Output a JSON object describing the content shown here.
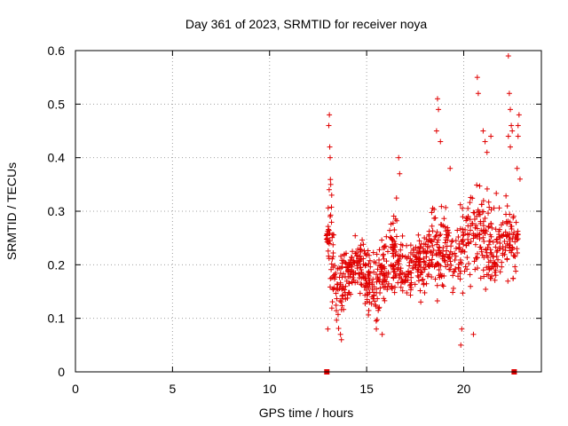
{
  "chart_data": {
    "type": "scatter",
    "title": "Day 361 of 2023, SRMTID for receiver noya",
    "xlabel": "GPS time / hours",
    "ylabel": "SRMTID / TECUs",
    "xlim": [
      0,
      24
    ],
    "ylim": [
      0,
      0.6
    ],
    "x_ticks": [
      0,
      5,
      10,
      15,
      20
    ],
    "x_tick_labels": [
      "0",
      "5",
      "10",
      "15",
      "20"
    ],
    "y_ticks": [
      0,
      0.1,
      0.2,
      0.3,
      0.4,
      0.5,
      0.6
    ],
    "y_tick_labels": [
      "0",
      "0.1",
      "0.2",
      "0.3",
      "0.4",
      "0.5",
      "0.6"
    ],
    "grid": true,
    "marker": "plus",
    "color": "#e00000",
    "series": [
      {
        "name": "SRMTID",
        "x_range": [
          12.9,
          22.8
        ],
        "envelope": [
          {
            "x": 13.0,
            "median": 0.24,
            "low": 0.08,
            "high": 0.48
          },
          {
            "x": 13.5,
            "median": 0.15,
            "low": 0.06,
            "high": 0.27
          },
          {
            "x": 14.0,
            "median": 0.18,
            "low": 0.11,
            "high": 0.26
          },
          {
            "x": 14.5,
            "median": 0.2,
            "low": 0.14,
            "high": 0.28
          },
          {
            "x": 15.0,
            "median": 0.18,
            "low": 0.1,
            "high": 0.28
          },
          {
            "x": 15.5,
            "median": 0.16,
            "low": 0.07,
            "high": 0.24
          },
          {
            "x": 16.0,
            "median": 0.2,
            "low": 0.1,
            "high": 0.28
          },
          {
            "x": 16.5,
            "median": 0.22,
            "low": 0.12,
            "high": 0.39
          },
          {
            "x": 17.0,
            "median": 0.19,
            "low": 0.11,
            "high": 0.26
          },
          {
            "x": 17.5,
            "median": 0.2,
            "low": 0.12,
            "high": 0.27
          },
          {
            "x": 18.0,
            "median": 0.2,
            "low": 0.12,
            "high": 0.29
          },
          {
            "x": 18.5,
            "median": 0.23,
            "low": 0.12,
            "high": 0.36
          },
          {
            "x": 19.0,
            "median": 0.24,
            "low": 0.14,
            "high": 0.34
          },
          {
            "x": 19.5,
            "median": 0.2,
            "low": 0.08,
            "high": 0.26
          },
          {
            "x": 20.0,
            "median": 0.24,
            "low": 0.12,
            "high": 0.34
          },
          {
            "x": 20.5,
            "median": 0.26,
            "low": 0.1,
            "high": 0.36
          },
          {
            "x": 21.0,
            "median": 0.24,
            "low": 0.15,
            "high": 0.42
          },
          {
            "x": 21.5,
            "median": 0.23,
            "low": 0.1,
            "high": 0.35
          },
          {
            "x": 22.0,
            "median": 0.24,
            "low": 0.15,
            "high": 0.32
          },
          {
            "x": 22.5,
            "median": 0.24,
            "low": 0.17,
            "high": 0.42
          },
          {
            "x": 22.8,
            "median": 0.25,
            "low": 0.2,
            "high": 0.3
          }
        ],
        "spikes": [
          [
            13.05,
            0.46
          ],
          [
            13.08,
            0.48
          ],
          [
            13.1,
            0.42
          ],
          [
            13.12,
            0.4
          ],
          [
            13.15,
            0.35
          ],
          [
            13.2,
            0.33
          ],
          [
            13.12,
            0.29
          ],
          [
            18.65,
            0.51
          ],
          [
            18.7,
            0.49
          ],
          [
            18.6,
            0.45
          ],
          [
            18.8,
            0.43
          ],
          [
            16.65,
            0.4
          ],
          [
            16.7,
            0.37
          ],
          [
            19.3,
            0.38
          ],
          [
            21.0,
            0.45
          ],
          [
            21.1,
            0.43
          ],
          [
            21.4,
            0.44
          ],
          [
            21.2,
            0.41
          ],
          [
            20.7,
            0.55
          ],
          [
            20.75,
            0.52
          ],
          [
            22.3,
            0.59
          ],
          [
            22.35,
            0.52
          ],
          [
            22.4,
            0.49
          ],
          [
            22.45,
            0.46
          ],
          [
            22.5,
            0.45
          ],
          [
            22.3,
            0.44
          ],
          [
            22.4,
            0.42
          ],
          [
            22.85,
            0.48
          ],
          [
            22.8,
            0.46
          ],
          [
            22.8,
            0.44
          ],
          [
            22.75,
            0.38
          ],
          [
            22.9,
            0.36
          ]
        ],
        "lows": [
          [
            13.7,
            0.06
          ],
          [
            13.65,
            0.07
          ],
          [
            15.8,
            0.07
          ],
          [
            19.85,
            0.05
          ],
          [
            20.5,
            0.07
          ],
          [
            13.0,
            0.08
          ],
          [
            15.5,
            0.08
          ],
          [
            19.9,
            0.08
          ]
        ]
      }
    ],
    "zero_markers_x": [
      12.95,
      22.6
    ],
    "zero_markers_y": 0
  }
}
